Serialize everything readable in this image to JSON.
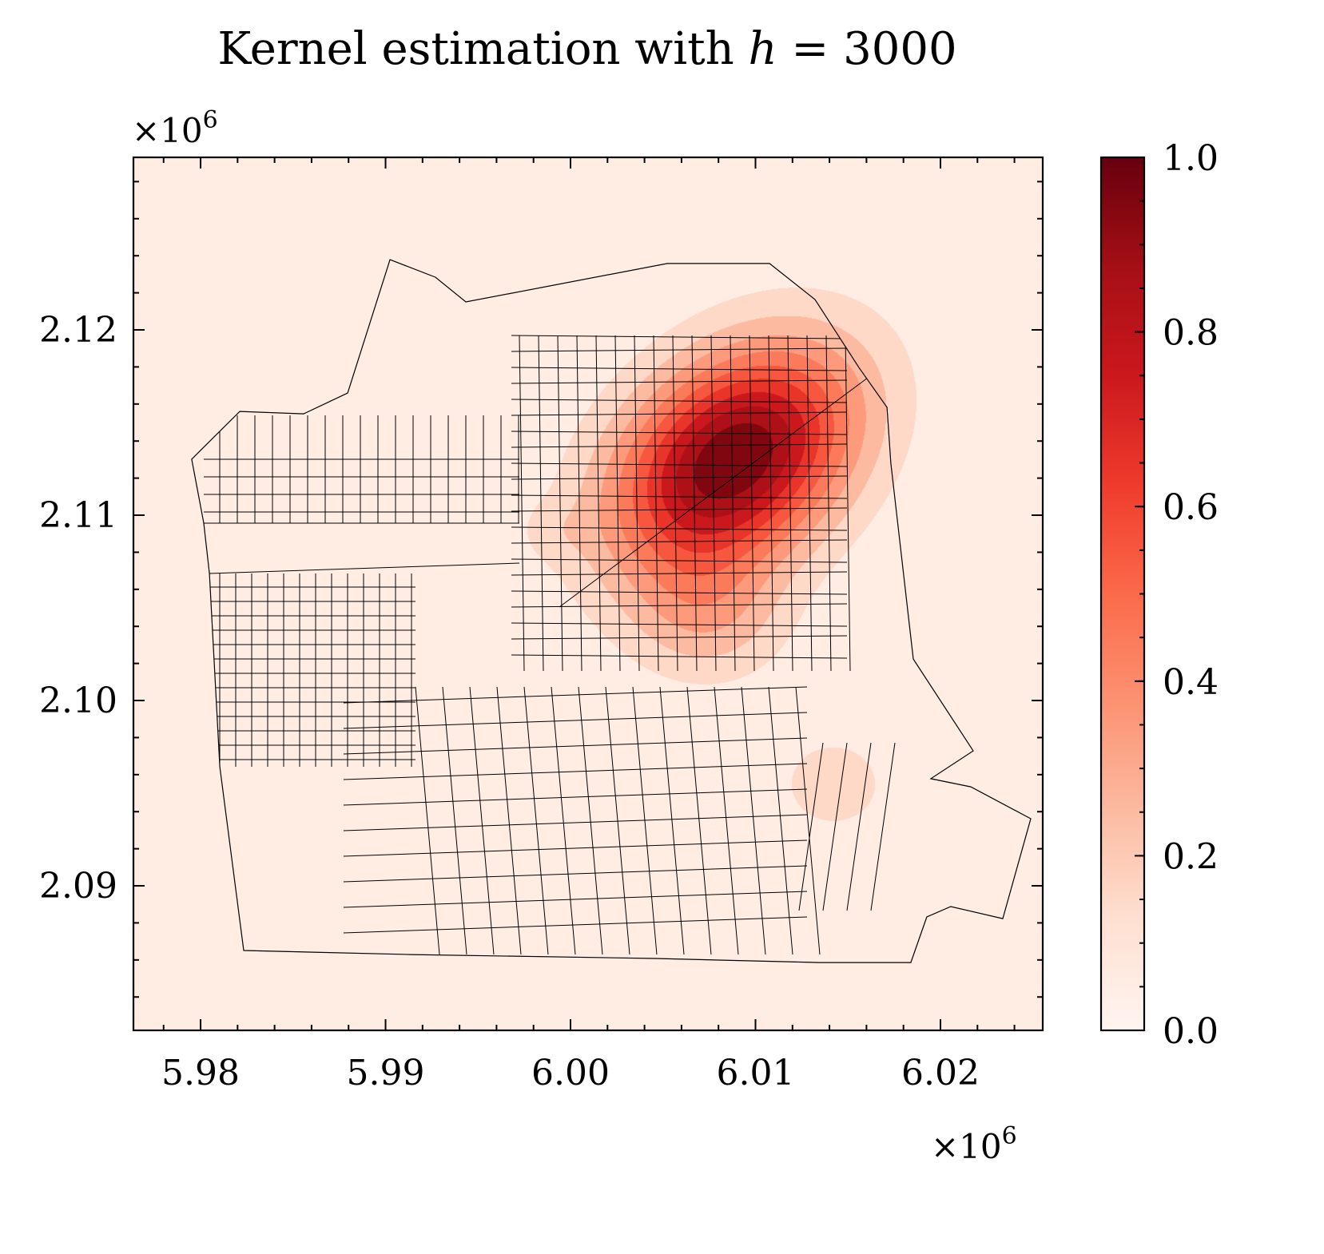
{
  "chart_data": {
    "type": "heatmap",
    "title_prefix": "Kernel estimation with ",
    "title_var": "h",
    "title_eq": " = 3000",
    "x_offset_label": "×10",
    "x_offset_exp": "6",
    "y_offset_label": "×10",
    "y_offset_exp": "6",
    "xlim": [
      5.97637,
      6.02553
    ],
    "ylim": [
      2.0822,
      2.12931
    ],
    "xticks": [
      5.98,
      5.99,
      6.0,
      6.01,
      6.02
    ],
    "xtick_labels": [
      "5.98",
      "5.99",
      "6.00",
      "6.01",
      "6.02"
    ],
    "yticks": [
      2.09,
      2.1,
      2.11,
      2.12
    ],
    "ytick_labels": [
      "2.09",
      "2.10",
      "2.11",
      "2.12"
    ],
    "minor_step": 0.002,
    "colorbar": {
      "cmap": "Reds",
      "range": [
        0,
        1
      ],
      "ticks": [
        0,
        0.2,
        0.4,
        0.6,
        0.8,
        1.0
      ],
      "tick_labels": [
        "0.0",
        "0.2",
        "0.4",
        "0.6",
        "0.8",
        "1.0"
      ],
      "minor_step": 0.05
    },
    "cmap_stops": [
      "#fff5f0",
      "#fee0d2",
      "#fcbba1",
      "#fc9272",
      "#fb6a4a",
      "#ef3b2c",
      "#cb181d",
      "#a50f15",
      "#67000d"
    ],
    "contour_levels": 10,
    "density_peaks": [
      {
        "x": 6.0088,
        "y": 2.113,
        "value": 1.0,
        "sigma_major": 0.0052,
        "sigma_minor": 0.0036,
        "angle_deg": 40
      },
      {
        "x": 6.0075,
        "y": 2.1045,
        "value": 0.22,
        "sigma_major": 0.003,
        "sigma_minor": 0.0026,
        "angle_deg": 0
      },
      {
        "x": 6.0142,
        "y": 2.0955,
        "value": 0.15,
        "sigma_major": 0.0025,
        "sigma_minor": 0.0022,
        "angle_deg": 0
      },
      {
        "x": 5.999,
        "y": 2.1092,
        "value": 0.07,
        "sigma_major": 0.0015,
        "sigma_minor": 0.0012,
        "angle_deg": 0
      }
    ],
    "boundary": [
      [
        5.99024,
        2.12379
      ],
      [
        5.9927,
        2.12284
      ],
      [
        5.99434,
        2.12151
      ],
      [
        6.00523,
        2.12358
      ],
      [
        6.01076,
        2.12358
      ],
      [
        6.01322,
        2.12164
      ],
      [
        6.01559,
        2.11797
      ],
      [
        6.01711,
        2.11582
      ],
      [
        6.01732,
        2.1128
      ],
      [
        6.01853,
        2.10224
      ],
      [
        6.02177,
        2.09728
      ],
      [
        6.01948,
        2.09578
      ],
      [
        6.02164,
        2.09534
      ],
      [
        6.02488,
        2.09362
      ],
      [
        6.02337,
        2.08823
      ],
      [
        6.02056,
        2.08888
      ],
      [
        6.01926,
        2.08832
      ],
      [
        6.0184,
        2.08586
      ],
      [
        6.01343,
        2.08586
      ],
      [
        6.00458,
        2.08608
      ],
      [
        5.9914,
        2.08629
      ],
      [
        5.98233,
        2.08651
      ],
      [
        5.98104,
        2.09642
      ],
      [
        5.98048,
        2.10685
      ],
      [
        5.98017,
        2.10957
      ],
      [
        5.97952,
        2.11302
      ],
      [
        5.98212,
        2.1156
      ],
      [
        5.98557,
        2.11547
      ],
      [
        5.98795,
        2.11659
      ]
    ]
  }
}
